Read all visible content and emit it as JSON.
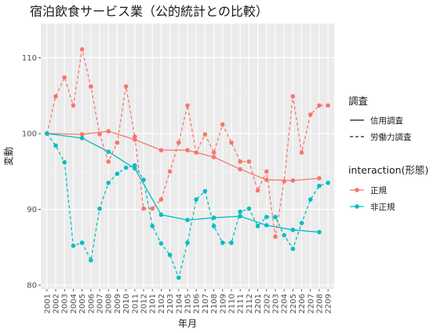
{
  "chart_data": {
    "type": "line",
    "title": "宿泊飲食サービス業（公的統計との比較）",
    "xlabel": "年月",
    "ylabel": "変動",
    "ylim": [
      79.5,
      114.5
    ],
    "yticks": [
      80,
      90,
      100,
      110
    ],
    "grid": true,
    "legend_placement": "right",
    "categories": [
      "2001",
      "2002",
      "2003",
      "2004",
      "2005",
      "2006",
      "2007",
      "2008",
      "2009",
      "2010",
      "2011",
      "2012",
      "2101",
      "2102",
      "2103",
      "2104",
      "2105",
      "2106",
      "2107",
      "2108",
      "2109",
      "2110",
      "2111",
      "2112",
      "2201",
      "2202",
      "2203",
      "2204",
      "2205",
      "2206",
      "2207",
      "2208",
      "2209"
    ],
    "linetype_legend": {
      "title": "調査",
      "items": [
        {
          "label": "信用調査",
          "dash": "solid"
        },
        {
          "label": "労働力調査",
          "dash": "dashed"
        }
      ]
    },
    "color_legend": {
      "title": "interaction(形態)",
      "items": [
        {
          "label": "正規",
          "color": "#F8766D"
        },
        {
          "label": "非正規",
          "color": "#00BFC4"
        }
      ]
    },
    "series": [
      {
        "name": "正規",
        "survey": "信用調査",
        "color": "#F8766D",
        "dash": "solid",
        "x": [
          "2001",
          "2005",
          "2008",
          "2011",
          "2102",
          "2105",
          "2108",
          "2111",
          "2202",
          "2205",
          "2208"
        ],
        "values": [
          100.0,
          99.9,
          100.3,
          99.2,
          97.8,
          97.8,
          96.9,
          95.3,
          93.9,
          93.8,
          94.1
        ]
      },
      {
        "name": "非正規",
        "survey": "信用調査",
        "color": "#00BFC4",
        "dash": "solid",
        "x": [
          "2001",
          "2005",
          "2008",
          "2011",
          "2102",
          "2105",
          "2108",
          "2111",
          "2202",
          "2205",
          "2208"
        ],
        "values": [
          100.0,
          99.4,
          97.6,
          95.4,
          89.3,
          88.6,
          88.9,
          89.1,
          87.9,
          87.3,
          87.0
        ]
      },
      {
        "name": "正規",
        "survey": "労働力調査",
        "color": "#F8766D",
        "dash": "dashed",
        "x": [
          "2001",
          "2002",
          "2003",
          "2004",
          "2005",
          "2006",
          "2007",
          "2008",
          "2009",
          "2010",
          "2011",
          "2012",
          "2101",
          "2102",
          "2103",
          "2104",
          "2105",
          "2106",
          "2107",
          "2108",
          "2109",
          "2110",
          "2111",
          "2112",
          "2201",
          "2202",
          "2203",
          "2204",
          "2205",
          "2206",
          "2207",
          "2208",
          "2209"
        ],
        "values": [
          100.0,
          104.9,
          107.4,
          103.7,
          111.1,
          106.2,
          99.9,
          96.3,
          98.8,
          106.2,
          99.6,
          90.1,
          90.1,
          91.3,
          95.0,
          98.8,
          103.7,
          97.5,
          99.9,
          97.5,
          101.2,
          98.8,
          96.3,
          96.3,
          92.5,
          95.0,
          86.4,
          93.7,
          104.9,
          97.5,
          102.5,
          103.7,
          103.7
        ]
      },
      {
        "name": "非正規",
        "survey": "労働力調査",
        "color": "#00BFC4",
        "dash": "dashed",
        "x": [
          "2001",
          "2002",
          "2003",
          "2004",
          "2005",
          "2006",
          "2007",
          "2008",
          "2009",
          "2010",
          "2011",
          "2012",
          "2101",
          "2102",
          "2103",
          "2104",
          "2105",
          "2106",
          "2107",
          "2108",
          "2109",
          "2110",
          "2111",
          "2112",
          "2201",
          "2202",
          "2203",
          "2204",
          "2205",
          "2206",
          "2207",
          "2208",
          "2209"
        ],
        "values": [
          100.0,
          98.4,
          96.2,
          85.2,
          85.6,
          83.3,
          90.1,
          93.5,
          94.7,
          95.5,
          95.8,
          93.9,
          87.8,
          85.5,
          84.0,
          81.0,
          85.6,
          91.3,
          92.4,
          87.8,
          85.6,
          85.6,
          89.7,
          90.1,
          87.8,
          89.0,
          89.0,
          86.6,
          84.8,
          88.2,
          91.3,
          93.1,
          93.5
        ]
      }
    ]
  }
}
